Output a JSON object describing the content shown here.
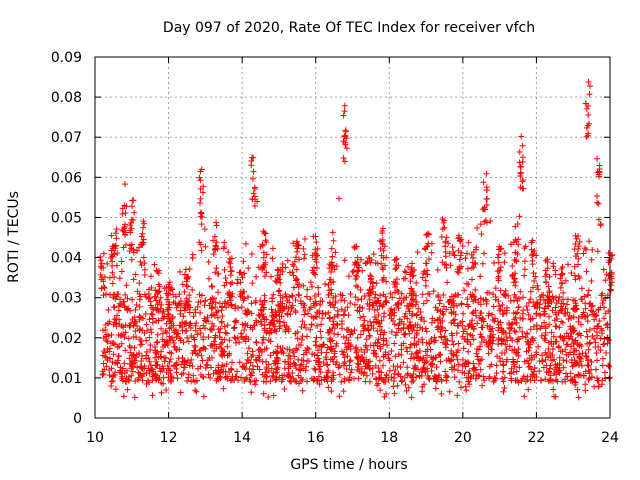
{
  "chart_data": {
    "type": "scatter",
    "title": "Day 097 of 2020, Rate Of TEC Index for receiver vfch",
    "xlabel": "GPS time / hours",
    "ylabel": "ROTI / TECUs",
    "xlim": [
      10,
      24
    ],
    "ylim": [
      0,
      0.09
    ],
    "xticks": [
      "10",
      "12",
      "14",
      "16",
      "18",
      "20",
      "22",
      "24"
    ],
    "yticks": [
      "0",
      "0.01",
      "0.02",
      "0.03",
      "0.04",
      "0.05",
      "0.06",
      "0.07",
      "0.08",
      "0.09"
    ],
    "grid": true,
    "marker": "+",
    "marker_color": "#ff0000",
    "series": [
      {
        "name": "ROTI",
        "baseline_band": [
          0.005,
          0.045
        ],
        "envelope": {
          "x": [
            10.2,
            10.5,
            10.8,
            11.0,
            11.3,
            11.7,
            12.0,
            12.5,
            12.9,
            13.3,
            13.7,
            14.0,
            14.3,
            14.6,
            15.0,
            15.5,
            16.0,
            16.4,
            16.8,
            17.1,
            17.5,
            17.8,
            18.2,
            18.6,
            19.0,
            19.5,
            19.9,
            20.3,
            20.6,
            21.0,
            21.4,
            21.6,
            21.9,
            22.3,
            22.7,
            23.1,
            23.4,
            23.7,
            24.0
          ],
          "ymax": [
            0.041,
            0.046,
            0.059,
            0.056,
            0.05,
            0.037,
            0.034,
            0.038,
            0.063,
            0.05,
            0.04,
            0.038,
            0.065,
            0.049,
            0.038,
            0.046,
            0.047,
            0.043,
            0.078,
            0.046,
            0.04,
            0.049,
            0.04,
            0.039,
            0.046,
            0.05,
            0.048,
            0.042,
            0.062,
            0.045,
            0.048,
            0.071,
            0.045,
            0.04,
            0.038,
            0.046,
            0.084,
            0.063,
            0.041
          ]
        }
      }
    ]
  }
}
